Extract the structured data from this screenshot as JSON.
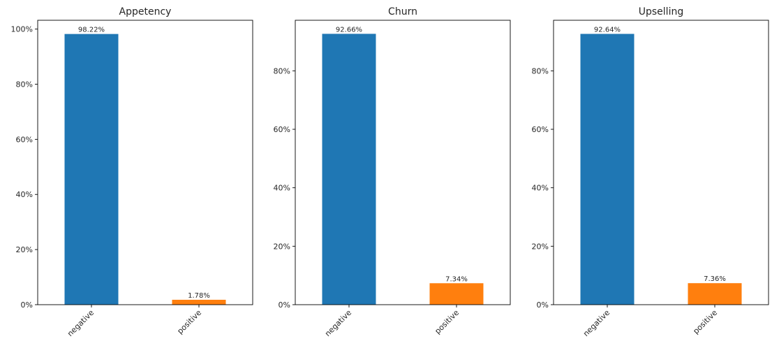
{
  "chart_data": [
    {
      "type": "bar",
      "title": "Appetency",
      "categories": [
        "negative",
        "positive"
      ],
      "values": [
        98.22,
        1.78
      ],
      "value_labels": [
        "98.22%",
        "1.78%"
      ],
      "colors": [
        "#1f77b4",
        "#ff7f0e"
      ],
      "ylim": [
        0,
        103.2
      ],
      "yticks": [
        0,
        20,
        40,
        60,
        80,
        100
      ],
      "ytick_labels": [
        "0%",
        "20%",
        "40%",
        "60%",
        "80%",
        "100%"
      ],
      "xlabel": "",
      "ylabel": "",
      "grid": false
    },
    {
      "type": "bar",
      "title": "Churn",
      "categories": [
        "negative",
        "positive"
      ],
      "values": [
        92.66,
        7.34
      ],
      "value_labels": [
        "92.66%",
        "7.34%"
      ],
      "colors": [
        "#1f77b4",
        "#ff7f0e"
      ],
      "ylim": [
        0,
        97.3
      ],
      "yticks": [
        0,
        20,
        40,
        60,
        80
      ],
      "ytick_labels": [
        "0%",
        "20%",
        "40%",
        "60%",
        "80%"
      ],
      "xlabel": "",
      "ylabel": "",
      "grid": false
    },
    {
      "type": "bar",
      "title": "Upselling",
      "categories": [
        "negative",
        "positive"
      ],
      "values": [
        92.64,
        7.36
      ],
      "value_labels": [
        "92.64%",
        "7.36%"
      ],
      "colors": [
        "#1f77b4",
        "#ff7f0e"
      ],
      "ylim": [
        0,
        97.3
      ],
      "yticks": [
        0,
        20,
        40,
        60,
        80
      ],
      "ytick_labels": [
        "0%",
        "20%",
        "40%",
        "60%",
        "80%"
      ],
      "xlabel": "",
      "ylabel": "",
      "grid": false
    }
  ]
}
